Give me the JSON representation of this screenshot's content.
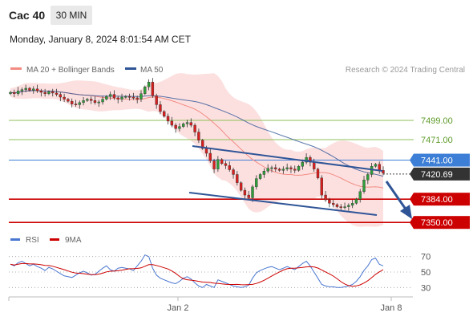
{
  "header": {
    "instrument": "Cac 40",
    "interval": "30 MIN",
    "datetime": "Monday, January 8, 2024 8:01:54 AM CET"
  },
  "legend": {
    "ma20_label": "MA 20 + Bollinger Bands",
    "ma50_label": "MA 50",
    "credit": "Research © 2024 Trading Central",
    "rsi_label": "RSI",
    "rsi_ma_label": "9MA"
  },
  "colors": {
    "candle_up": "#2e9e3a",
    "candle_down": "#d81e1e",
    "ma20": "#f28b82",
    "ma50": "#2f5597",
    "bollinger_fill": "#fbd5d5",
    "resistance": "#8fbf5a",
    "pivot": "#3d7fd6",
    "support": "#cc0000",
    "channel": "#2f5597",
    "rsi": "#4a77d0",
    "rsi_ma": "#cc0000"
  },
  "chart_data": [
    {
      "type": "candlestick",
      "title": "Cac 40",
      "interval": "30 MIN",
      "x_ticks": [
        "Jan 2",
        "Jan 8"
      ],
      "ylim": [
        7335,
        7560
      ],
      "indicators": [
        "MA 20 + Bollinger Bands",
        "MA 50"
      ],
      "last_price": 7420.69,
      "levels": [
        {
          "value": 7499.0,
          "label": "7499.00",
          "kind": "resistance"
        },
        {
          "value": 7471.0,
          "label": "7471.00",
          "kind": "resistance"
        },
        {
          "value": 7441.0,
          "label": "7441.00",
          "kind": "pivot"
        },
        {
          "value": 7384.0,
          "label": "7384.00",
          "kind": "support"
        },
        {
          "value": 7350.0,
          "label": "7350.00",
          "kind": "support"
        }
      ],
      "close_series": [
        7540,
        7538,
        7542,
        7544,
        7546,
        7543,
        7545,
        7542,
        7540,
        7538,
        7541,
        7539,
        7537,
        7533,
        7530,
        7527,
        7523,
        7522,
        7525,
        7528,
        7530,
        7528,
        7525,
        7526,
        7530,
        7534,
        7537,
        7532,
        7530,
        7533,
        7534,
        7533,
        7532,
        7530,
        7538,
        7548,
        7555,
        7535,
        7522,
        7512,
        7505,
        7498,
        7492,
        7487,
        7490,
        7494,
        7496,
        7492,
        7482,
        7470,
        7458,
        7451,
        7440,
        7428,
        7442,
        7436,
        7433,
        7427,
        7420,
        7408,
        7397,
        7390,
        7386,
        7402,
        7414,
        7420,
        7425,
        7429,
        7430,
        7428,
        7426,
        7428,
        7430,
        7428,
        7426,
        7432,
        7438,
        7445,
        7438,
        7428,
        7415,
        7390,
        7383,
        7378,
        7376,
        7373,
        7372,
        7373,
        7375,
        7378,
        7384,
        7395,
        7412,
        7420,
        7432,
        7435,
        7426,
        7422
      ]
    },
    {
      "type": "line",
      "title": "RSI",
      "series": [
        {
          "name": "RSI"
        },
        {
          "name": "9MA"
        }
      ],
      "y_ticks": [
        70,
        50,
        30
      ],
      "ylim": [
        20,
        80
      ],
      "rsi_values": [
        60,
        58,
        62,
        64,
        61,
        58,
        60,
        57,
        55,
        52,
        56,
        54,
        51,
        48,
        45,
        44,
        43,
        46,
        49,
        51,
        49,
        46,
        47,
        51,
        55,
        58,
        53,
        51,
        55,
        56,
        55,
        54,
        52,
        58,
        64,
        72,
        70,
        55,
        46,
        42,
        40,
        38,
        36,
        35,
        38,
        42,
        44,
        41,
        36,
        32,
        30,
        34,
        32,
        30,
        40,
        38,
        36,
        34,
        32,
        31,
        30,
        31,
        33,
        42,
        49,
        52,
        54,
        56,
        57,
        55,
        53,
        55,
        57,
        55,
        53,
        57,
        61,
        64,
        58,
        50,
        42,
        34,
        32,
        31,
        31,
        30,
        30,
        31,
        32,
        34,
        38,
        44,
        52,
        58,
        66,
        68,
        60,
        58
      ]
    }
  ]
}
